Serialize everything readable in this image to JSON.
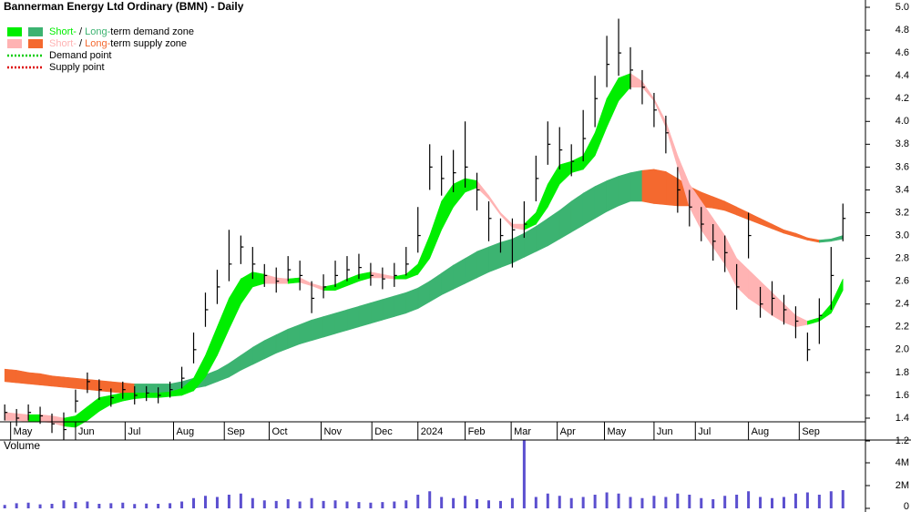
{
  "header": {
    "title": "Bannerman Energy Ltd Ordinary (BMN) - Daily"
  },
  "chart_data": {
    "type": "ohlc",
    "x": [
      0,
      1,
      2,
      3,
      4,
      5,
      6,
      7,
      8,
      9,
      10,
      11,
      12,
      13,
      14,
      15,
      16,
      17,
      18,
      19,
      20,
      21,
      22,
      23,
      24,
      25,
      26,
      27,
      28,
      29,
      30,
      31,
      32,
      33,
      34,
      35,
      36,
      37,
      38,
      39,
      40,
      41,
      42,
      43,
      44,
      45,
      46,
      47,
      48,
      49,
      50,
      51,
      52,
      53,
      54,
      55,
      56,
      57,
      58,
      59,
      60,
      61,
      62,
      63,
      64,
      65,
      66,
      67,
      68,
      69,
      70,
      71
    ],
    "high": [
      1.52,
      1.48,
      1.52,
      1.5,
      1.44,
      1.45,
      1.65,
      1.8,
      1.74,
      1.66,
      1.72,
      1.68,
      1.68,
      1.67,
      1.72,
      1.85,
      2.15,
      2.5,
      2.7,
      3.05,
      3.0,
      2.9,
      2.75,
      2.72,
      2.82,
      2.78,
      2.6,
      2.66,
      2.78,
      2.82,
      2.84,
      2.76,
      2.72,
      2.76,
      2.9,
      3.25,
      3.8,
      3.7,
      3.75,
      4.0,
      3.55,
      3.3,
      3.15,
      3.15,
      3.3,
      3.7,
      4.0,
      3.95,
      3.8,
      4.1,
      4.4,
      4.75,
      4.9,
      4.65,
      4.45,
      4.25,
      4.05,
      3.6,
      3.4,
      3.25,
      3.1,
      3.0,
      2.75,
      3.2,
      2.55,
      2.6,
      2.48,
      2.38,
      2.15,
      2.45,
      2.9,
      3.28
    ],
    "low": [
      1.38,
      1.33,
      1.38,
      1.35,
      1.27,
      1.18,
      1.45,
      1.62,
      1.56,
      1.5,
      1.57,
      1.52,
      1.55,
      1.53,
      1.58,
      1.66,
      1.88,
      2.2,
      2.4,
      2.6,
      2.75,
      2.62,
      2.55,
      2.5,
      2.6,
      2.52,
      2.32,
      2.45,
      2.55,
      2.6,
      2.62,
      2.56,
      2.53,
      2.55,
      2.65,
      2.85,
      3.4,
      3.35,
      3.38,
      3.42,
      3.22,
      2.95,
      2.85,
      2.72,
      2.98,
      3.3,
      3.62,
      3.58,
      3.52,
      3.65,
      3.95,
      4.3,
      4.4,
      4.28,
      4.15,
      3.95,
      3.72,
      3.2,
      3.08,
      2.95,
      2.78,
      2.68,
      2.35,
      2.8,
      2.28,
      2.3,
      2.22,
      2.1,
      1.9,
      2.05,
      2.35,
      2.95
    ],
    "close": [
      1.45,
      1.4,
      1.45,
      1.42,
      1.35,
      1.3,
      1.55,
      1.72,
      1.65,
      1.58,
      1.65,
      1.6,
      1.62,
      1.6,
      1.65,
      1.75,
      2.0,
      2.35,
      2.55,
      2.75,
      2.9,
      2.75,
      2.65,
      2.6,
      2.7,
      2.65,
      2.45,
      2.55,
      2.65,
      2.7,
      2.72,
      2.65,
      2.62,
      2.65,
      2.75,
      3.0,
      3.6,
      3.5,
      3.55,
      3.6,
      3.4,
      3.15,
      3.0,
      3.05,
      3.1,
      3.5,
      3.8,
      3.75,
      3.65,
      3.85,
      4.2,
      4.5,
      4.6,
      4.45,
      4.3,
      4.1,
      3.9,
      3.4,
      3.25,
      3.1,
      2.95,
      2.85,
      2.55,
      3.0,
      2.4,
      2.45,
      2.35,
      2.25,
      2.0,
      2.3,
      2.65,
      3.15
    ],
    "bar_color": "#000000",
    "xlim": [
      -0.4,
      72.6
    ],
    "xticks": [
      {
        "value": 0.5,
        "label": "May"
      },
      {
        "value": 6,
        "label": "Jun"
      },
      {
        "value": 10.2,
        "label": "Jul"
      },
      {
        "value": 14.3,
        "label": "Aug"
      },
      {
        "value": 18.6,
        "label": "Sep"
      },
      {
        "value": 22.4,
        "label": "Oct"
      },
      {
        "value": 26.8,
        "label": "Nov"
      },
      {
        "value": 31.1,
        "label": "Dec"
      },
      {
        "value": 35,
        "label": "2024"
      },
      {
        "value": 39,
        "label": "Feb"
      },
      {
        "value": 42.9,
        "label": "Mar"
      },
      {
        "value": 46.8,
        "label": "Apr"
      },
      {
        "value": 50.8,
        "label": "May"
      },
      {
        "value": 55,
        "label": "Jun"
      },
      {
        "value": 58.5,
        "label": "Jul"
      },
      {
        "value": 63,
        "label": "Aug"
      },
      {
        "value": 67.3,
        "label": "Sep"
      }
    ],
    "ylim": [
      1.15,
      5.05
    ],
    "yticks": [
      1.2,
      1.4,
      1.6,
      1.8,
      {
        "value": 2,
        "label": "2.0"
      },
      2.2,
      2.4,
      2.6,
      2.8,
      {
        "value": 3,
        "label": "3.0"
      },
      3.2,
      3.4,
      3.6,
      3.8,
      {
        "value": 4,
        "label": "4.0"
      },
      4.2,
      4.4,
      4.6,
      4.8,
      {
        "value": 5,
        "label": "5.0"
      }
    ],
    "long_zone": {
      "rise_color": "#3cb371",
      "fall_color": "#f4692f",
      "upper": [
        1.83,
        1.82,
        1.8,
        1.79,
        1.77,
        1.76,
        1.75,
        1.74,
        1.73,
        1.72,
        1.71,
        1.7,
        1.7,
        1.7,
        1.7,
        1.72,
        1.75,
        1.78,
        1.82,
        1.88,
        1.95,
        2.02,
        2.08,
        2.13,
        2.18,
        2.22,
        2.26,
        2.29,
        2.32,
        2.35,
        2.38,
        2.41,
        2.44,
        2.47,
        2.5,
        2.54,
        2.6,
        2.67,
        2.74,
        2.8,
        2.86,
        2.9,
        2.94,
        2.97,
        3.02,
        3.08,
        3.15,
        3.22,
        3.3,
        3.37,
        3.43,
        3.48,
        3.52,
        3.55,
        3.57,
        3.58,
        3.56,
        3.5,
        3.43,
        3.38,
        3.34,
        3.3,
        3.25,
        3.2,
        3.15,
        3.1,
        3.05,
        3.02,
        2.98,
        2.96,
        2.97,
        3.0
      ],
      "lower": [
        1.72,
        1.71,
        1.7,
        1.69,
        1.68,
        1.67,
        1.66,
        1.65,
        1.64,
        1.63,
        1.62,
        1.62,
        1.62,
        1.62,
        1.63,
        1.64,
        1.66,
        1.68,
        1.72,
        1.76,
        1.82,
        1.87,
        1.92,
        1.97,
        2.01,
        2.05,
        2.08,
        2.11,
        2.14,
        2.17,
        2.2,
        2.23,
        2.26,
        2.29,
        2.32,
        2.36,
        2.42,
        2.48,
        2.53,
        2.58,
        2.63,
        2.68,
        2.72,
        2.76,
        2.81,
        2.86,
        2.91,
        2.97,
        3.03,
        3.09,
        3.15,
        3.21,
        3.26,
        3.3,
        3.3,
        3.28,
        3.27,
        3.26,
        3.26,
        3.25,
        3.24,
        3.22,
        3.18,
        3.14,
        3.1,
        3.06,
        3.02,
        2.99,
        2.96,
        2.94,
        2.95,
        2.97
      ]
    },
    "short_zone": {
      "rise_color": "#00ee00",
      "fall_color": "#ffb3b3",
      "upper": [
        1.45,
        1.44,
        1.43,
        1.43,
        1.42,
        1.4,
        1.42,
        1.5,
        1.58,
        1.6,
        1.62,
        1.62,
        1.62,
        1.62,
        1.63,
        1.66,
        1.75,
        1.95,
        2.2,
        2.45,
        2.62,
        2.68,
        2.66,
        2.63,
        2.62,
        2.63,
        2.58,
        2.55,
        2.57,
        2.62,
        2.66,
        2.68,
        2.66,
        2.64,
        2.66,
        2.75,
        3.0,
        3.3,
        3.45,
        3.5,
        3.48,
        3.35,
        3.2,
        3.1,
        3.1,
        3.2,
        3.45,
        3.62,
        3.65,
        3.7,
        3.9,
        4.2,
        4.38,
        4.42,
        4.35,
        4.2,
        4.0,
        3.7,
        3.45,
        3.3,
        3.15,
        3.0,
        2.8,
        2.7,
        2.6,
        2.5,
        2.4,
        2.3,
        2.25,
        2.28,
        2.4,
        2.62
      ],
      "lower": [
        1.38,
        1.38,
        1.37,
        1.37,
        1.36,
        1.33,
        1.32,
        1.38,
        1.46,
        1.52,
        1.55,
        1.57,
        1.58,
        1.58,
        1.59,
        1.6,
        1.64,
        1.76,
        1.95,
        2.18,
        2.4,
        2.55,
        2.58,
        2.58,
        2.58,
        2.59,
        2.56,
        2.52,
        2.52,
        2.56,
        2.6,
        2.63,
        2.63,
        2.62,
        2.62,
        2.66,
        2.8,
        3.05,
        3.25,
        3.38,
        3.42,
        3.32,
        3.18,
        3.07,
        3.05,
        3.1,
        3.25,
        3.45,
        3.55,
        3.58,
        3.7,
        3.95,
        4.18,
        4.3,
        4.3,
        4.18,
        3.95,
        3.6,
        3.25,
        3.05,
        2.9,
        2.75,
        2.55,
        2.45,
        2.38,
        2.3,
        2.24,
        2.2,
        2.22,
        2.25,
        2.32,
        2.52
      ]
    },
    "legend": [
      {
        "parts": [
          "Short-",
          " / ",
          "Long-",
          "term demand zone"
        ]
      },
      {
        "parts": [
          "Short-",
          " / ",
          "Long-",
          "term supply zone"
        ]
      }
    ],
    "points": [
      {
        "name": "Demand point",
        "color": "#00cc00"
      },
      {
        "name": "Supply point",
        "color": "#dd0000"
      }
    ],
    "volume": {
      "title": "Volume",
      "title_color": "#3d1f8a",
      "color": "#5b4fcf",
      "values": [
        300000,
        450000,
        500000,
        350000,
        400000,
        700000,
        550000,
        600000,
        400000,
        450000,
        500000,
        380000,
        420000,
        400000,
        450000,
        600000,
        900000,
        1100000,
        1000000,
        1200000,
        1300000,
        900000,
        700000,
        650000,
        800000,
        600000,
        900000,
        650000,
        700000,
        600000,
        550000,
        500000,
        550000,
        600000,
        700000,
        1200000,
        1500000,
        1000000,
        900000,
        1100000,
        800000,
        700000,
        650000,
        900000,
        6000000,
        1000000,
        1300000,
        1100000,
        900000,
        1000000,
        1200000,
        1400000,
        1300000,
        1000000,
        900000,
        1100000,
        1000000,
        1300000,
        1200000,
        900000,
        800000,
        1100000,
        1200000,
        1500000,
        1000000,
        900000,
        1000000,
        1300000,
        1400000,
        1200000,
        1500000,
        1600000
      ],
      "ylim": [
        0,
        6000000
      ],
      "yticks": [
        0,
        {
          "value": 2000000,
          "label": "2M"
        },
        {
          "value": 4000000,
          "label": "4M"
        }
      ]
    }
  }
}
